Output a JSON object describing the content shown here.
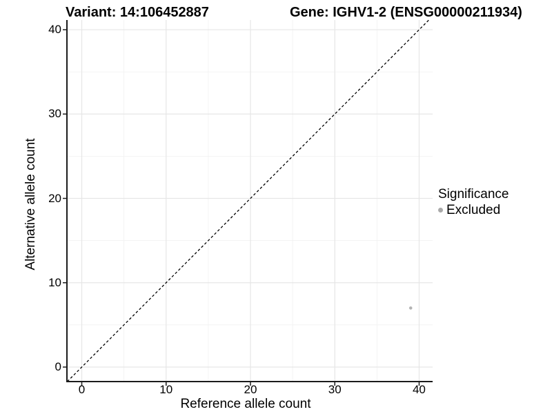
{
  "titles": {
    "variant": "Variant: 14:106452887",
    "gene": "Gene: IGHV1-2 (ENSG00000211934)"
  },
  "chart_data": {
    "type": "scatter",
    "xlabel": "Reference allele count",
    "ylabel": "Alternative allele count",
    "xlim": [
      -1.76,
      41.6
    ],
    "ylim": [
      -1.72,
      41.15
    ],
    "x_ticks": [
      0,
      10,
      20,
      30,
      40
    ],
    "y_ticks": [
      0,
      10,
      20,
      30,
      40
    ],
    "x_minor_ticks": [
      5,
      15,
      25,
      35
    ],
    "y_minor_ticks": [
      5,
      15,
      25,
      35
    ],
    "grid": "major and minor, light gray on white",
    "identity_line": {
      "equation": "y = x",
      "style": "dashed",
      "color": "#000000"
    },
    "series": [
      {
        "name": "Excluded",
        "marker": "circle",
        "color": "#b3b3b3",
        "points": [
          [
            39,
            7
          ]
        ]
      }
    ],
    "legend": {
      "title": "Significance",
      "position": "right",
      "items": [
        {
          "label": "Excluded",
          "marker": "circle",
          "color": "#a9a9a9"
        }
      ]
    },
    "colors": {
      "grid_major": "#e6e6e6",
      "grid_minor": "#f2f2f2",
      "axis_line": "#1a1a1a",
      "tick_mark": "#1a1a1a",
      "background": "#ffffff"
    }
  }
}
